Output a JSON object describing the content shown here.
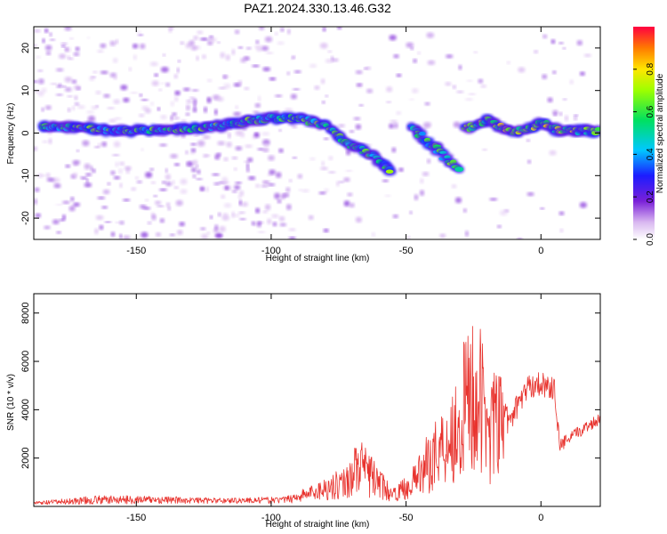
{
  "title": "PAZ1.2024.330.13.46.G32",
  "chart_data": [
    {
      "type": "heatmap",
      "xlabel": "Height of straight line (km)",
      "ylabel": "Frequency (Hz)",
      "xlim": [
        -188,
        22
      ],
      "ylim": [
        -25,
        25
      ],
      "xticks": [
        -150,
        -100,
        -50,
        0
      ],
      "yticks": [
        -20,
        -10,
        0,
        10,
        20
      ],
      "colorbar": {
        "label": "Normalized spectral amplitude",
        "range": [
          0,
          1
        ],
        "ticks": [
          0.0,
          0.2,
          0.4,
          0.6,
          0.8
        ],
        "colormap": "rainbow (violet → blue → cyan → green → yellow → red)"
      },
      "ridge": {
        "description": "dominant frequency ridge",
        "points": [
          {
            "x": -185,
            "f": 1.5
          },
          {
            "x": -170,
            "f": 1.5
          },
          {
            "x": -160,
            "f": 0.5
          },
          {
            "x": -150,
            "f": 0.5
          },
          {
            "x": -140,
            "f": 1.0
          },
          {
            "x": -130,
            "f": 1.0
          },
          {
            "x": -120,
            "f": 1.5
          },
          {
            "x": -110,
            "f": 2.5
          },
          {
            "x": -100,
            "f": 3.5
          },
          {
            "x": -90,
            "f": 3.5
          },
          {
            "x": -80,
            "f": 2.0
          },
          {
            "x": -75,
            "f": -1.0
          },
          {
            "x": -70,
            "f": -3.0
          },
          {
            "x": -63,
            "f": -5.0
          },
          {
            "x": -55,
            "f": -9.0
          }
        ],
        "branch2": [
          {
            "x": -48,
            "f": 1.5
          },
          {
            "x": -42,
            "f": -2.0
          },
          {
            "x": -36,
            "f": -5.5
          },
          {
            "x": -30,
            "f": -9.0
          }
        ],
        "branch3": [
          {
            "x": -28,
            "f": 1.0
          },
          {
            "x": -20,
            "f": 3.0
          },
          {
            "x": -12,
            "f": 0.5
          },
          {
            "x": -5,
            "f": 0.5
          },
          {
            "x": 0,
            "f": 2.5
          },
          {
            "x": 5,
            "f": 1.0
          },
          {
            "x": 12,
            "f": 0.5
          },
          {
            "x": 22,
            "f": 0.5
          }
        ]
      }
    },
    {
      "type": "line",
      "xlabel": "Height of straight line (km)",
      "ylabel": "SNR (10 * v/v)",
      "xlim": [
        -188,
        22
      ],
      "ylim": [
        0,
        8800
      ],
      "xticks": [
        -150,
        -100,
        -50,
        0
      ],
      "yticks": [
        2000,
        4000,
        6000,
        8000
      ],
      "color": "#e8332e",
      "envelope": [
        {
          "x": -188,
          "lo": 50,
          "hi": 200
        },
        {
          "x": -165,
          "lo": 80,
          "hi": 450
        },
        {
          "x": -150,
          "lo": 100,
          "hi": 450
        },
        {
          "x": -120,
          "lo": 120,
          "hi": 350
        },
        {
          "x": -95,
          "lo": 120,
          "hi": 400
        },
        {
          "x": -85,
          "lo": 200,
          "hi": 900
        },
        {
          "x": -72,
          "lo": 300,
          "hi": 1700
        },
        {
          "x": -68,
          "lo": 400,
          "hi": 2900
        },
        {
          "x": -62,
          "lo": 300,
          "hi": 2000
        },
        {
          "x": -55,
          "lo": 200,
          "hi": 700
        },
        {
          "x": -48,
          "lo": 300,
          "hi": 1500
        },
        {
          "x": -40,
          "lo": 600,
          "hi": 3500
        },
        {
          "x": -32,
          "lo": 800,
          "hi": 5200
        },
        {
          "x": -25,
          "lo": 600,
          "hi": 8700
        },
        {
          "x": -20,
          "lo": 900,
          "hi": 6000
        },
        {
          "x": -15,
          "lo": 1000,
          "hi": 5500
        },
        {
          "x": -12,
          "lo": 3000,
          "hi": 4000
        },
        {
          "x": -5,
          "lo": 4400,
          "hi": 5400
        },
        {
          "x": 0,
          "lo": 4600,
          "hi": 5600
        },
        {
          "x": 5,
          "lo": 4300,
          "hi": 5300
        },
        {
          "x": 7,
          "lo": 2200,
          "hi": 2800
        },
        {
          "x": 15,
          "lo": 2900,
          "hi": 3400
        },
        {
          "x": 22,
          "lo": 3400,
          "hi": 3900
        }
      ]
    }
  ]
}
